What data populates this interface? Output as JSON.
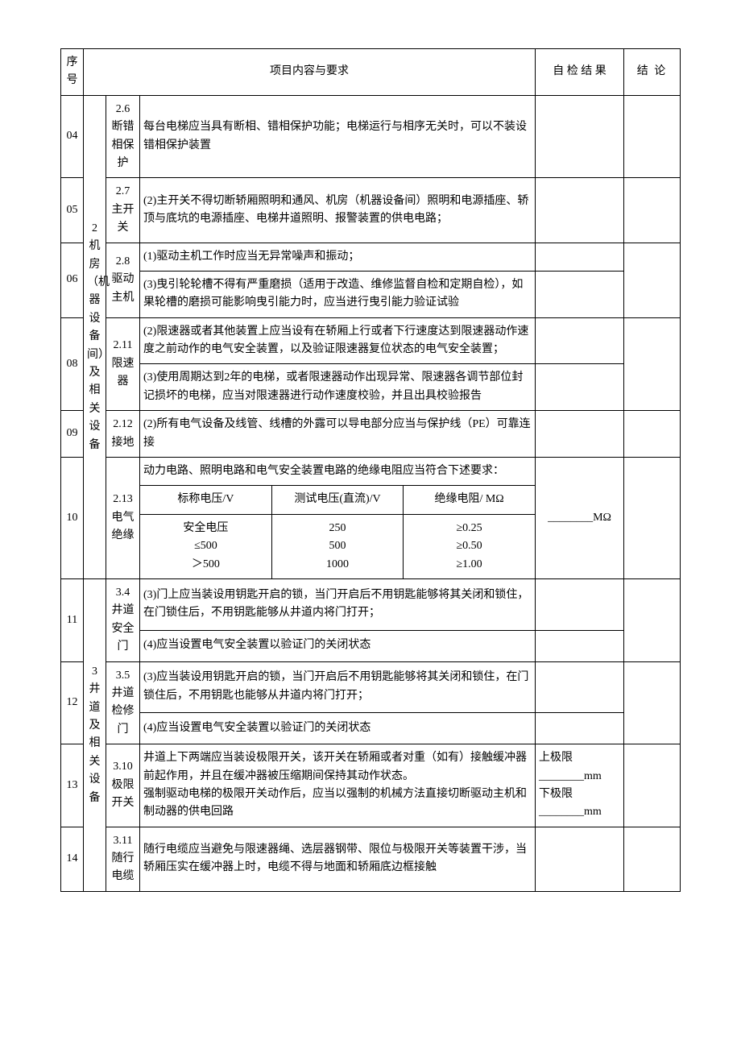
{
  "headers": {
    "seq": "序号",
    "content": "项目内容与要求",
    "result": "自 检 结 果",
    "conclusion": "结 论"
  },
  "cat2": "2 机房（机器设备间）及相关设备",
  "cat3": "3 井道及相关设备",
  "rows": {
    "r04": {
      "seq": "04",
      "item": "2.6 断错相保护",
      "desc": "每台电梯应当具有断相、错相保护功能；电梯运行与相序无关时，可以不装设错相保护装置"
    },
    "r05": {
      "seq": "05",
      "item": "2.7 主开关",
      "desc": "(2)主开关不得切断轿厢照明和通风、机房（机器设备间）照明和电源插座、轿顶与底坑的电源插座、电梯井道照明、报警装置的供电电路；"
    },
    "r06": {
      "seq": "06",
      "item": "2.8 驱动主机",
      "desc1": "(1)驱动主机工作时应当无异常噪声和振动；",
      "desc3": "(3)曳引轮轮槽不得有严重磨损（适用于改造、维修监督自检和定期自检），如果轮槽的磨损可能影响曳引能力时，应当进行曳引能力验证试验"
    },
    "r08": {
      "seq": "08",
      "item": "2.11 限速器",
      "desc2": "(2)限速器或者其他装置上应当设有在轿厢上行或者下行速度达到限速器动作速度之前动作的电气安全装置，以及验证限速器复位状态的电气安全装置；",
      "desc3": "(3)使用周期达到2年的电梯，或者限速器动作出现异常、限速器各调节部位封记损坏的电梯，应当对限速器进行动作速度校验，并且出具校验报告"
    },
    "r09": {
      "seq": "09",
      "item": "2.12 接地",
      "desc": "(2)所有电气设备及线管、线槽的外露可以导电部分应当与保护线（PE）可靠连接"
    },
    "r10": {
      "seq": "10",
      "item": "2.13 电气绝缘",
      "intro": "动力电路、照明电路和电气安全装置电路的绝缘电阻应当符合下述要求：",
      "th1": "标称电压/V",
      "th2": "测试电压(直流)/V",
      "th3": "绝缘电阻/ MΩ",
      "c1a": "安全电压",
      "c1b": "≤500",
      "c1c": "＞500",
      "c2a": "250",
      "c2b": "500",
      "c2c": "1000",
      "c3a": "≥0.25",
      "c3b": "≥0.50",
      "c3c": "≥1.00",
      "result": "________MΩ"
    },
    "r11": {
      "seq": "11",
      "item": "3.4 井道安全门",
      "desc3": "(3)门上应当装设用钥匙开启的锁，当门开启后不用钥匙能够将其关闭和锁住，在门锁住后，不用钥匙能够从井道内将门打开；",
      "desc4": "(4)应当设置电气安全装置以验证门的关闭状态"
    },
    "r12": {
      "seq": "12",
      "item": "3.5 井道检修门",
      "desc3": "(3)应当装设用钥匙开启的锁，当门开启后不用钥匙能够将其关闭和锁住，在门锁住后，不用钥匙也能够从井道内将门打开；",
      "desc4": "(4)应当设置电气安全装置以验证门的关闭状态"
    },
    "r13": {
      "seq": "13",
      "item": "3.10 极限开关",
      "desc": "井道上下两端应当装设极限开关，该开关在轿厢或者对重（如有）接触缓冲器前起作用，并且在缓冲器被压缩期间保持其动作状态。\n强制驱动电梯的极限开关动作后，应当以强制的机械方法直接切断驱动主机和制动器的供电回路",
      "res1": "上极限________mm",
      "res2": "下极限________mm"
    },
    "r14": {
      "seq": "14",
      "item": "3.11 随行电缆",
      "desc": "随行电缆应当避免与限速器绳、选层器钢带、限位与极限开关等装置干涉，当轿厢压实在缓冲器上时，电缆不得与地面和轿厢底边框接触"
    }
  }
}
